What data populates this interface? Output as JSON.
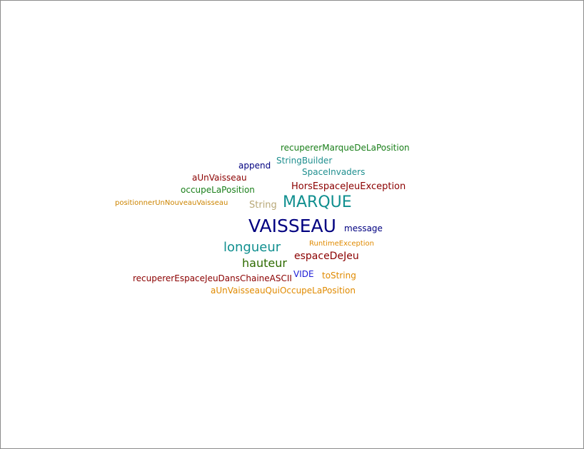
{
  "words": [
    {
      "text": "recupererMarqueDeLaPosition",
      "color": "#1a7f1a"
    },
    {
      "text": "StringBuilder",
      "color": "#1f8f8f"
    },
    {
      "text": "append",
      "color": "#000080"
    },
    {
      "text": "SpaceInvaders",
      "color": "#1f8f8f"
    },
    {
      "text": "aUnVaisseau",
      "color": "#8b0000"
    },
    {
      "text": "HorsEspaceJeuException",
      "color": "#8b0000"
    },
    {
      "text": "occupeLaPosition",
      "color": "#1a7f1a"
    },
    {
      "text": "positionnerUnNouveauVaisseau",
      "color": "#cc8400"
    },
    {
      "text": "String",
      "color": "#b8a878"
    },
    {
      "text": "MARQUE",
      "color": "#108f8f"
    },
    {
      "text": "VAISSEAU",
      "color": "#000080"
    },
    {
      "text": "message",
      "color": "#000080"
    },
    {
      "text": "longueur",
      "color": "#108f8f"
    },
    {
      "text": "RuntimeException",
      "color": "#e08a00"
    },
    {
      "text": "hauteur",
      "color": "#2e6b00"
    },
    {
      "text": "espaceDeJeu",
      "color": "#8b0000"
    },
    {
      "text": "recupererEspaceJeuDansChaineASCII",
      "color": "#8b0000"
    },
    {
      "text": "VIDE",
      "color": "#1c1cd6"
    },
    {
      "text": "toString",
      "color": "#e08a00"
    },
    {
      "text": "aUnVaisseauQuiOccupeLaPosition",
      "color": "#e08a00"
    }
  ]
}
